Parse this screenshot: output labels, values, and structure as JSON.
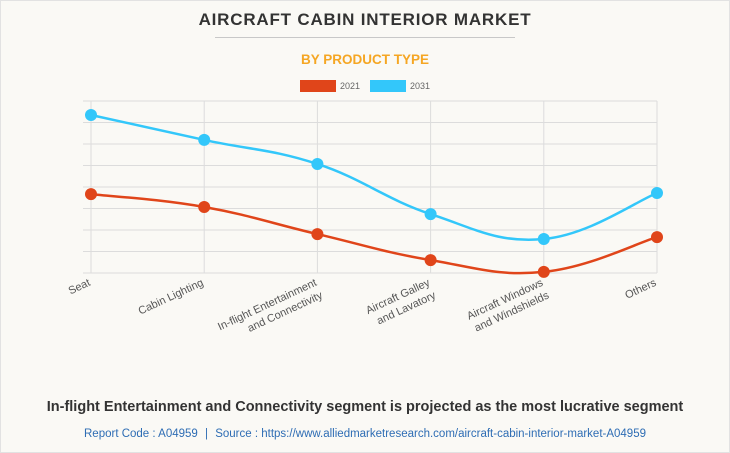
{
  "title": "AIRCRAFT CABIN INTERIOR MARKET",
  "subtitle": "BY PRODUCT TYPE",
  "caption": "In-flight Entertainment and Connectivity segment is projected as the most lucrative segment",
  "footer": {
    "report_code": "Report Code : A04959",
    "separator": "|",
    "source": "Source : https://www.alliedmarketresearch.com/aircraft-cabin-interior-market-A04959"
  },
  "colors": {
    "series_2021": "#e0451a",
    "series_2031": "#33c7fa",
    "subtitle": "#f5a623",
    "footer": "#2e6db4"
  },
  "chart_data": {
    "type": "line",
    "title": "AIRCRAFT CABIN INTERIOR MARKET",
    "subtitle": "BY PRODUCT TYPE",
    "xlabel": "",
    "ylabel": "",
    "y_tick_labels_shown": false,
    "ylim": [
      0,
      8
    ],
    "y_gridlines": 9,
    "grid": true,
    "legend": "top-center",
    "categories": [
      [
        "Seat"
      ],
      [
        "Cabin Lighting"
      ],
      [
        "In-flight Entertainment",
        "and Connectivity"
      ],
      [
        "Aircraft Galley",
        "and Lavatory"
      ],
      [
        "Aircraft Windows",
        "and Windshields"
      ],
      [
        "Others"
      ]
    ],
    "series": [
      {
        "name": "2021",
        "values": [
          3.67,
          3.07,
          1.81,
          0.6,
          0.05,
          1.67
        ]
      },
      {
        "name": "2031",
        "values": [
          7.35,
          6.19,
          5.07,
          2.74,
          1.58,
          3.72
        ]
      }
    ]
  }
}
